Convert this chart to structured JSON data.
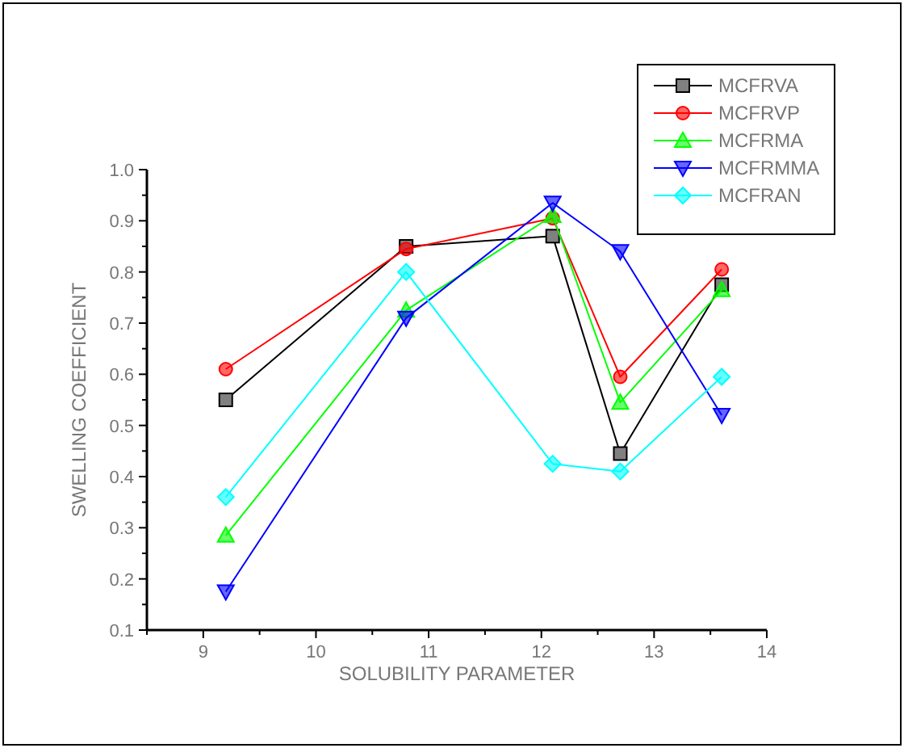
{
  "chart_data": {
    "type": "line",
    "xlabel": "SOLUBILITY PARAMETER",
    "ylabel": "SWELLING COEFFICIENT",
    "x": [
      9.2,
      10.8,
      12.1,
      12.7,
      13.6
    ],
    "xlim": [
      8.5,
      14
    ],
    "xticks": [
      {
        "value": 8.5,
        "label": null
      },
      9,
      {
        "value": 9.5,
        "label": null
      },
      10,
      {
        "value": 10.5,
        "label": null
      },
      11,
      {
        "value": 11.5,
        "label": null
      },
      12,
      {
        "value": 12.5,
        "label": null
      },
      13,
      {
        "value": 13.5,
        "label": null
      },
      14
    ],
    "ylim": [
      0.1,
      1.0
    ],
    "yticks": [
      0.1,
      {
        "value": 0.15,
        "label": null
      },
      0.2,
      {
        "value": 0.25,
        "label": null
      },
      0.3,
      {
        "value": 0.35,
        "label": null
      },
      0.4,
      {
        "value": 0.45,
        "label": null
      },
      0.5,
      {
        "value": 0.55,
        "label": null
      },
      0.6,
      {
        "value": 0.65,
        "label": null
      },
      0.7,
      {
        "value": 0.75,
        "label": null
      },
      0.8,
      {
        "value": 0.85,
        "label": null
      },
      0.9,
      {
        "value": 0.95,
        "label": null
      },
      {
        "value": 1.0,
        "label": "1.0"
      }
    ],
    "legend": "top right",
    "grid": false,
    "series": [
      {
        "name": "MCFRVA",
        "color": "#000000",
        "marker": "square",
        "values": [
          0.55,
          0.85,
          0.87,
          0.445,
          0.775
        ]
      },
      {
        "name": "MCFRVP",
        "color": "#ff0000",
        "marker": "circle",
        "values": [
          0.61,
          0.845,
          0.905,
          0.595,
          0.805
        ]
      },
      {
        "name": "MCFRMA",
        "color": "#00ff00",
        "marker": "triangle",
        "values": [
          0.285,
          0.725,
          0.91,
          0.545,
          0.765
        ]
      },
      {
        "name": "MCFRMMA",
        "color": "#0000ff",
        "marker": "triangle-down",
        "values": [
          0.175,
          0.71,
          0.935,
          0.84,
          0.52
        ]
      },
      {
        "name": "MCFRAN",
        "color": "#00ffff",
        "marker": "diamond",
        "values": [
          0.36,
          0.8,
          0.425,
          0.41,
          0.595
        ]
      }
    ]
  }
}
